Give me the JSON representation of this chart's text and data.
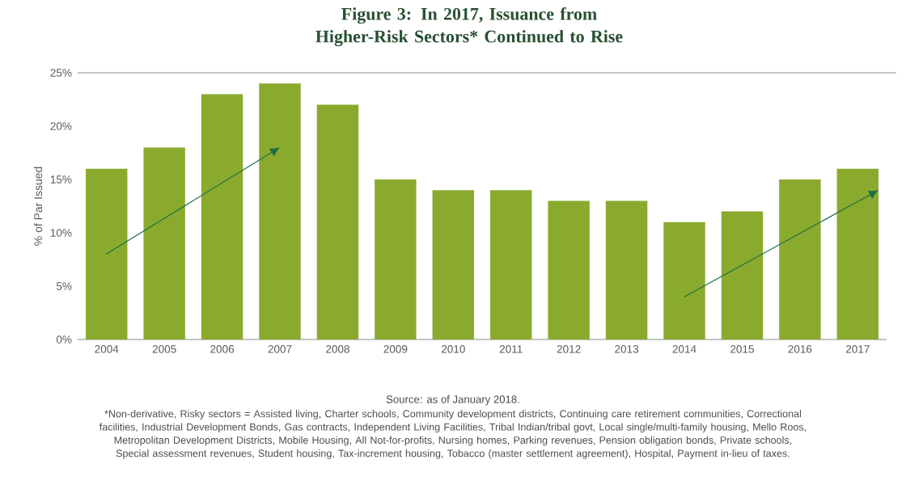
{
  "chart_data": {
    "type": "bar",
    "title": "Figure 3: In 2017, Issuance from Higher-Risk Sectors* Continued to Rise",
    "ylabel": "% of Par Issued",
    "x": [
      2004,
      2005,
      2006,
      2007,
      2008,
      2009,
      2010,
      2011,
      2012,
      2013,
      2014,
      2015,
      2016,
      2017
    ],
    "series": [
      {
        "color": "#8aaa2e",
        "values": [
          16,
          18,
          23,
          24,
          22,
          15,
          14,
          14,
          13,
          13,
          11,
          12,
          15,
          16
        ]
      }
    ],
    "xlim": [
      2003.5,
      2017.5
    ],
    "xticks": [
      2004,
      2005,
      2006,
      2007,
      2008,
      2009,
      2010,
      2011,
      2012,
      2013,
      2014,
      2015,
      2016,
      2017
    ],
    "ylim": [
      0,
      25
    ],
    "yticks": [
      {
        "value": 0,
        "label": "0%"
      },
      {
        "value": 5,
        "label": "5%"
      },
      {
        "value": 10,
        "label": "10%"
      },
      {
        "value": 15,
        "label": "15%"
      },
      {
        "value": 20,
        "label": "20%"
      },
      {
        "value": 25,
        "label": "25%"
      }
    ],
    "ref_lines": [
      {
        "axis": "y",
        "value": 25,
        "color": "#8c8c8c"
      }
    ],
    "grid": false,
    "annotations": [
      "Source: as of January 2018.",
      "*Non-derivative, Risky sectors = Assisted living, Charter schools, Community development districts, Continuing care retirement communities, Correctional facilities, Industrial Development Bonds, Gas contracts, Independent Living Facilities, Tribal Indian/tribal govt, Local single/multi-family housing, Mello Roos, Metropolitan Development Districts, Mobile Housing, All Not-for-profits, Nursing homes, Parking revenues, Pension obligation bonds, Private schools, Special assessment revenues, Student housing, Tax-increment housing, Tobacco (master settlement agreement), Hospital, Payment in-lieu of taxes."
    ]
  }
}
